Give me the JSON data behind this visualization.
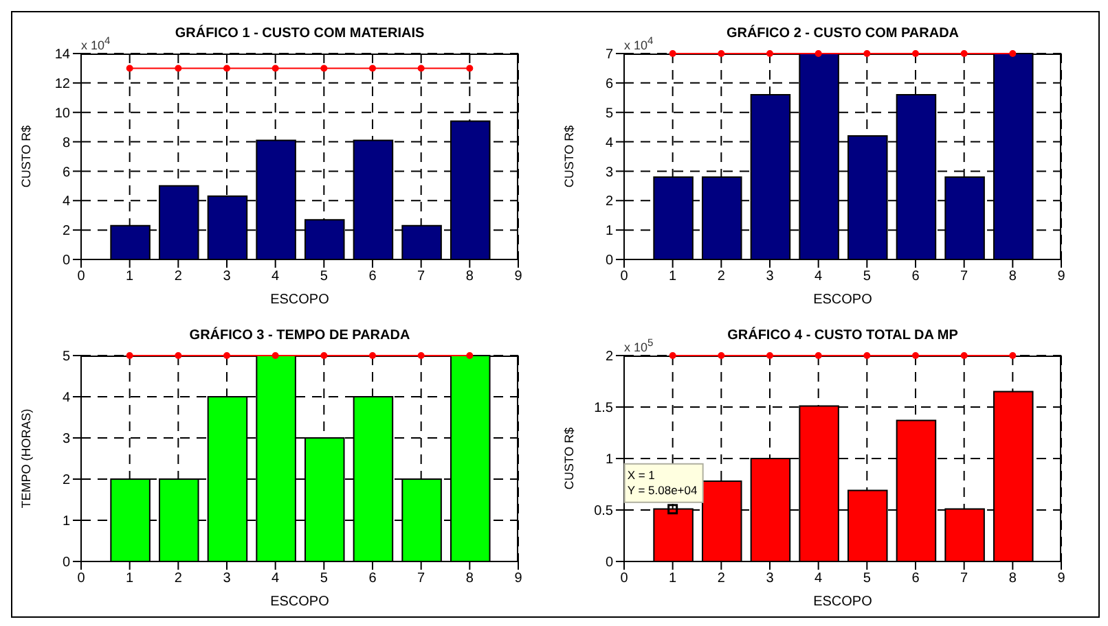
{
  "chart_data": [
    {
      "type": "bar",
      "title": "GRÁFICO 1 - CUSTO COM MATERIAIS",
      "xlabel": "ESCOPO",
      "ylabel": "CUSTO R$",
      "annotations": [
        "x 10$^{4}$"
      ],
      "xlim": [
        0,
        9
      ],
      "xticks": [
        0,
        1,
        2,
        3,
        4,
        5,
        6,
        7,
        8,
        9
      ],
      "ylim": [
        0,
        14
      ],
      "yticks": [
        0,
        2,
        4,
        6,
        8,
        10,
        12,
        14
      ],
      "grid": true,
      "marker": "circle",
      "series": [
        {
          "color": "#000080",
          "x": [
            1,
            2,
            3,
            4,
            5,
            6,
            7,
            8
          ],
          "values": [
            2.3,
            5,
            4.3,
            8.1,
            2.7,
            8.1,
            2.3,
            9.4
          ]
        },
        {
          "type": "line",
          "color": "#ff0000",
          "x": [
            1,
            2,
            3,
            4,
            5,
            6,
            7,
            8
          ],
          "values": [
            13,
            13,
            13,
            13,
            13,
            13,
            13,
            13
          ]
        }
      ]
    },
    {
      "type": "bar",
      "title": "GRÁFICO 2 - CUSTO COM PARADA",
      "xlabel": "ESCOPO",
      "ylabel": "CUSTO R$",
      "annotations": [
        "x 10$^{4}$"
      ],
      "xlim": [
        0,
        9
      ],
      "xticks": [
        0,
        1,
        2,
        3,
        4,
        5,
        6,
        7,
        8,
        9
      ],
      "ylim": [
        0,
        7
      ],
      "yticks": [
        0,
        1,
        2,
        3,
        4,
        5,
        6,
        7
      ],
      "grid": true,
      "marker": "circle",
      "series": [
        {
          "color": "#000080",
          "x": [
            1,
            2,
            3,
            4,
            5,
            6,
            7,
            8
          ],
          "values": [
            2.8,
            2.8,
            5.6,
            7,
            4.2,
            5.6,
            2.8,
            7
          ]
        },
        {
          "type": "line",
          "color": "#ff0000",
          "x": [
            1,
            2,
            3,
            4,
            5,
            6,
            7,
            8
          ],
          "values": [
            7,
            7,
            7,
            7,
            7,
            7,
            7,
            7
          ]
        }
      ]
    },
    {
      "type": "bar",
      "title": "GRÁFICO 3 - TEMPO DE PARADA",
      "xlabel": "ESCOPO",
      "ylabel": "TEMPO (HORAS)",
      "xlim": [
        0,
        9
      ],
      "xticks": [
        0,
        1,
        2,
        3,
        4,
        5,
        6,
        7,
        8,
        9
      ],
      "ylim": [
        0,
        5
      ],
      "yticks": [
        0,
        1,
        2,
        3,
        4,
        5
      ],
      "grid": true,
      "marker": "circle",
      "series": [
        {
          "color": "#00ff00",
          "x": [
            1,
            2,
            3,
            4,
            5,
            6,
            7,
            8
          ],
          "values": [
            2,
            2,
            4,
            5,
            3,
            4,
            2,
            5
          ]
        },
        {
          "type": "line",
          "color": "#ff0000",
          "x": [
            1,
            2,
            3,
            4,
            5,
            6,
            7,
            8
          ],
          "values": [
            5,
            5,
            5,
            5,
            5,
            5,
            5,
            5
          ]
        }
      ]
    },
    {
      "type": "bar",
      "title": "GRÁFICO 4 - CUSTO TOTAL DA MP",
      "xlabel": "ESCOPO",
      "ylabel": "CUSTO R$",
      "annotations": [
        "x 10$^{5}$",
        {
          "text": "X = 1\nY = 5.08e+04",
          "x": 1,
          "y": 0.508
        }
      ],
      "xlim": [
        0,
        9
      ],
      "xticks": [
        0,
        1,
        2,
        3,
        4,
        5,
        6,
        7,
        8,
        9
      ],
      "ylim": [
        0,
        2
      ],
      "yticks": [
        0,
        0.5,
        1,
        1.5,
        2
      ],
      "grid": true,
      "marker": "circle",
      "series": [
        {
          "color": "#ff0000",
          "x": [
            1,
            2,
            3,
            4,
            5,
            6,
            7,
            8
          ],
          "values": [
            0.51,
            0.78,
            1.0,
            1.51,
            0.69,
            1.37,
            0.51,
            1.65
          ]
        },
        {
          "type": "line",
          "color": "#ff0000",
          "x": [
            1,
            2,
            3,
            4,
            5,
            6,
            7,
            8
          ],
          "values": [
            2,
            2,
            2,
            2,
            2,
            2,
            2,
            2
          ]
        }
      ]
    }
  ]
}
